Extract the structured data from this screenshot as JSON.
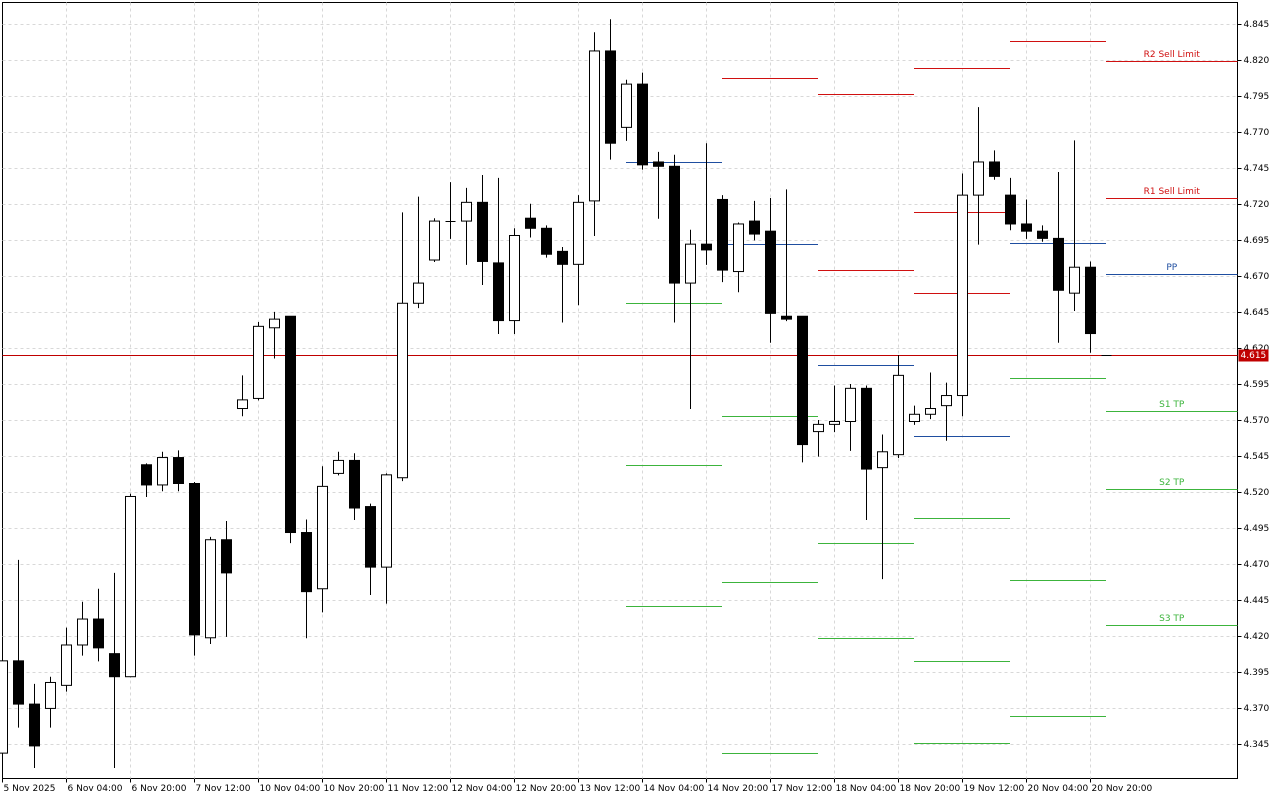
{
  "chart_data": {
    "type": "candlestick",
    "categories": [
      "5 Nov 2025",
      null,
      null,
      null,
      "6 Nov 04:00",
      null,
      null,
      null,
      "6 Nov 20:00",
      null,
      null,
      null,
      "7 Nov 12:00",
      null,
      null,
      null,
      "10 Nov 04:00",
      null,
      null,
      null,
      "10 Nov 20:00",
      null,
      null,
      null,
      "11 Nov 12:00",
      null,
      null,
      null,
      "12 Nov 04:00",
      null,
      null,
      null,
      "12 Nov 20:00",
      null,
      null,
      null,
      "13 Nov 12:00",
      null,
      null,
      null,
      "14 Nov 04:00",
      null,
      null,
      null,
      "14 Nov 20:00",
      null,
      null,
      null,
      "17 Nov 12:00",
      null,
      null,
      null,
      "18 Nov 04:00",
      null,
      null,
      null,
      "18 Nov 20:00",
      null,
      null,
      null,
      "19 Nov 12:00",
      null,
      null,
      null,
      "20 Nov 04:00",
      null,
      null,
      null,
      "20 Nov 20:00",
      null
    ],
    "open": [
      4.339,
      4.403,
      4.373,
      4.37,
      4.386,
      4.414,
      4.432,
      4.408,
      4.392,
      4.539,
      4.525,
      4.544,
      4.526,
      4.419,
      4.487,
      4.578,
      4.585,
      4.634,
      4.642,
      4.492,
      4.453,
      4.533,
      4.542,
      4.51,
      4.468,
      4.53,
      4.651,
      4.681,
      4.707,
      4.708,
      4.721,
      4.679,
      4.639,
      4.71,
      4.703,
      4.687,
      4.678,
      4.722,
      4.826,
      4.773,
      4.803,
      4.749,
      4.746,
      4.665,
      4.692,
      4.723,
      4.673,
      4.708,
      4.701,
      4.642,
      4.642,
      4.562,
      4.567,
      4.569,
      4.592,
      4.537,
      4.546,
      4.569,
      4.574,
      4.58,
      4.587,
      4.726,
      4.749,
      4.726,
      4.706,
      4.701,
      4.696,
      4.658,
      4.676,
      4.615
    ],
    "high": [
      4.403,
      4.473,
      4.387,
      4.392,
      4.426,
      4.444,
      4.453,
      4.464,
      4.519,
      4.54,
      4.548,
      4.549,
      4.527,
      4.489,
      4.5,
      4.601,
      4.638,
      4.645,
      4.642,
      4.501,
      4.538,
      4.548,
      4.547,
      4.512,
      4.533,
      4.714,
      4.725,
      4.71,
      4.735,
      4.731,
      4.74,
      4.738,
      4.703,
      4.72,
      4.705,
      4.69,
      4.726,
      4.839,
      4.848,
      4.806,
      4.811,
      4.756,
      4.754,
      4.702,
      4.762,
      4.726,
      4.707,
      4.722,
      4.724,
      4.73,
      4.642,
      4.57,
      4.594,
      4.595,
      4.594,
      4.56,
      4.615,
      4.58,
      4.603,
      4.596,
      4.741,
      4.787,
      4.757,
      4.738,
      4.723,
      4.705,
      4.742,
      4.764,
      4.68,
      4.615
    ],
    "low": [
      4.339,
      4.357,
      4.329,
      4.357,
      4.382,
      4.407,
      4.403,
      4.329,
      4.392,
      4.517,
      4.521,
      4.521,
      4.407,
      4.415,
      4.42,
      4.573,
      4.584,
      4.613,
      4.485,
      4.419,
      4.437,
      4.532,
      4.501,
      4.449,
      4.443,
      4.528,
      4.648,
      4.68,
      4.696,
      4.678,
      4.664,
      4.63,
      4.63,
      4.697,
      4.683,
      4.638,
      4.65,
      4.698,
      4.751,
      4.764,
      4.744,
      4.71,
      4.638,
      4.578,
      4.678,
      4.666,
      4.659,
      4.695,
      4.624,
      4.639,
      4.541,
      4.545,
      4.562,
      4.549,
      4.501,
      4.46,
      4.544,
      4.567,
      4.571,
      4.556,
      4.573,
      4.692,
      4.737,
      4.702,
      4.696,
      4.694,
      4.624,
      4.646,
      4.617,
      4.615
    ],
    "close": [
      4.403,
      4.373,
      4.344,
      4.388,
      4.414,
      4.432,
      4.412,
      4.392,
      4.517,
      4.525,
      4.544,
      4.526,
      4.421,
      4.487,
      4.464,
      4.584,
      4.635,
      4.64,
      4.492,
      4.451,
      4.524,
      4.542,
      4.509,
      4.468,
      4.532,
      4.651,
      4.665,
      4.708,
      4.708,
      4.721,
      4.68,
      4.639,
      4.698,
      4.703,
      4.685,
      4.678,
      4.721,
      4.826,
      4.762,
      4.803,
      4.747,
      4.746,
      4.665,
      4.692,
      4.688,
      4.674,
      4.706,
      4.699,
      4.644,
      4.64,
      4.553,
      4.567,
      4.569,
      4.592,
      4.536,
      4.548,
      4.601,
      4.574,
      4.578,
      4.587,
      4.726,
      4.749,
      4.739,
      4.706,
      4.701,
      4.696,
      4.66,
      4.676,
      4.63,
      4.615
    ],
    "ylim": [
      4.3214,
      4.8596
    ],
    "yticks": [
      4.345,
      {
        "value": 4.37,
        "label": "4.370"
      },
      4.395,
      {
        "value": 4.42,
        "label": "4.420"
      },
      4.445,
      {
        "value": 4.47,
        "label": "4.470"
      },
      4.495,
      {
        "value": 4.52,
        "label": "4.520"
      },
      4.545,
      {
        "value": 4.57,
        "label": "4.570"
      },
      4.595,
      {
        "value": 4.62,
        "label": "4.620"
      },
      4.645,
      {
        "value": 4.67,
        "label": "4.670"
      },
      4.695,
      {
        "value": 4.72,
        "label": "4.720"
      },
      4.745,
      {
        "value": 4.77,
        "label": "4.770"
      },
      4.795,
      {
        "value": 4.82,
        "label": "4.820"
      },
      4.845
    ],
    "grid": true,
    "current_price": 4.615,
    "current_price_color": "#c00000",
    "pivots": {
      "start": [
        39,
        45,
        51,
        57,
        63,
        69
      ],
      "levels": [
        {
          "color": "#d01010",
          "values": [
            null,
            null,
            null,
            4.814,
            null,
            null
          ]
        },
        {
          "color": "#d01010",
          "label": "R2 Sell Limit",
          "values": [
            null,
            null,
            4.796,
            4.714,
            4.833,
            4.819
          ]
        },
        {
          "color": "#d01010",
          "label": "R1 Sell Limit",
          "values": [
            null,
            4.807,
            4.674,
            4.658,
            null,
            4.724
          ]
        },
        {
          "color": "#1f4ea0",
          "label": "PP",
          "values": [
            4.749,
            4.692,
            4.608,
            4.559,
            4.693,
            4.671
          ]
        },
        {
          "color": "#3cb43c",
          "label": "S1 TP",
          "values": [
            4.651,
            4.573,
            4.485,
            4.502,
            4.599,
            4.576
          ]
        },
        {
          "color": "#3cb43c",
          "label": "S2 TP",
          "values": [
            4.539,
            4.458,
            4.419,
            4.403,
            4.459,
            4.522
          ]
        },
        {
          "color": "#3cb43c",
          "label": "S3 TP",
          "values": [
            4.441,
            4.339,
            null,
            4.346,
            4.365,
            4.428
          ]
        }
      ]
    }
  }
}
